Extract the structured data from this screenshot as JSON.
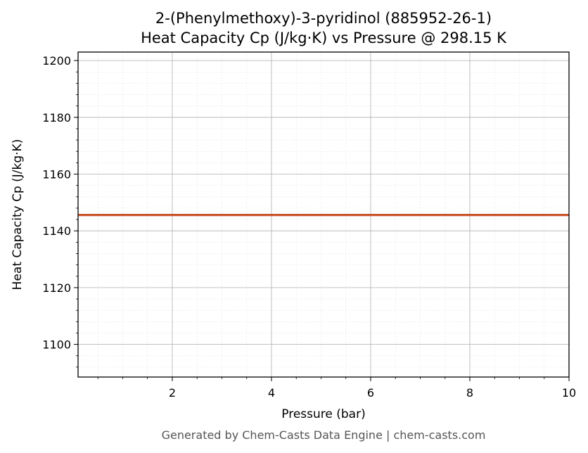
{
  "chart_data": {
    "type": "line",
    "title": "2-(Phenylmethoxy)-3-pyridinol (885952-26-1)",
    "subtitle": "Heat Capacity Cp (J/kg·K) vs Pressure @ 298.15 K",
    "xlabel": "Pressure (bar)",
    "ylabel": "Heat Capacity Cp (J/kg·K)",
    "xlim": [
      0.1,
      10
    ],
    "ylim": [
      1088.5,
      1203
    ],
    "x_ticks": [
      2,
      4,
      6,
      8,
      10
    ],
    "y_ticks": [
      1100,
      1120,
      1140,
      1160,
      1180,
      1200
    ],
    "x_minor_step": 0.5,
    "y_minor_step": 4,
    "grid": true,
    "series": [
      {
        "color": "#c8552a",
        "x": [
          0.1,
          10
        ],
        "y": [
          1145.6,
          1145.6
        ]
      }
    ],
    "footer": "Generated by Chem-Casts Data Engine | chem-casts.com"
  }
}
